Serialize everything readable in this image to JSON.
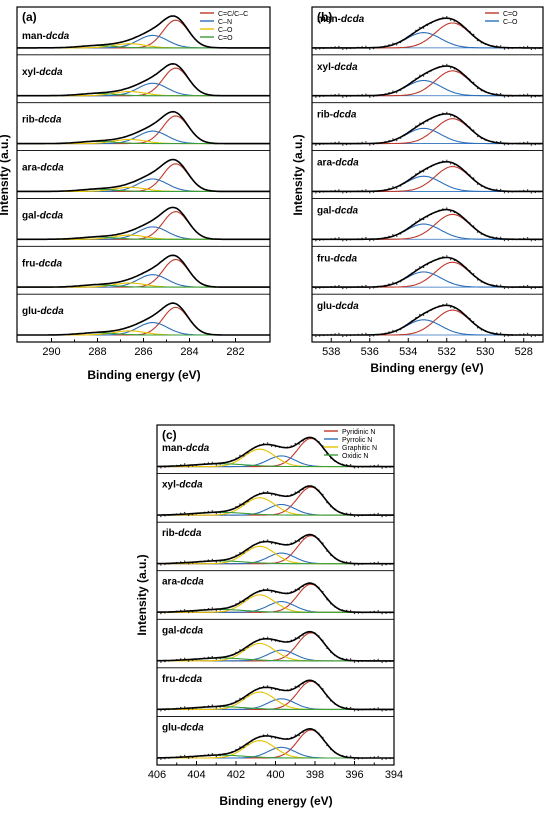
{
  "figure": {
    "y_axis_title": "Intensity (a.u.)",
    "x_axis_title": "Binding energy (eV)"
  },
  "chart_data": [
    {
      "panel": "(a)",
      "type": "line",
      "xlabel": "Binding energy (eV)",
      "ylabel": "Intensity (a.u.)",
      "xlim": [
        291.5,
        280.5
      ],
      "x_reversed": true,
      "xticks": [
        290,
        288,
        286,
        284,
        282
      ],
      "samples": [
        "man-dcda",
        "xyl-dcda",
        "rib-dcda",
        "ara-dcda",
        "gal-dcda",
        "fru-dcda",
        "glu-dcda"
      ],
      "components": [
        {
          "name": "C=C/C–C",
          "color": "#c0392b",
          "center": 284.6,
          "fwhm": 1.3,
          "amp": 1.0
        },
        {
          "name": "C–N",
          "color": "#2c6fbb",
          "center": 285.6,
          "fwhm": 1.5,
          "amp": 0.45
        },
        {
          "name": "C–O",
          "color": "#e8c200",
          "center": 286.6,
          "fwhm": 1.6,
          "amp": 0.15
        },
        {
          "name": "C=O",
          "color": "#3a9e3a",
          "center": 288.0,
          "fwhm": 1.8,
          "amp": 0.08
        }
      ],
      "envelope_color": "#000000",
      "data_points": false
    },
    {
      "panel": "(b)",
      "type": "line",
      "xlabel": "Binding energy (eV)",
      "ylabel": "Intensity (a.u.)",
      "xlim": [
        539,
        527
      ],
      "x_reversed": true,
      "xticks": [
        538,
        536,
        534,
        532,
        530,
        528
      ],
      "samples": [
        "man-dcda",
        "xyl-dcda",
        "rib-dcda",
        "ara-dcda",
        "gal-dcda",
        "fru-dcda",
        "glu-dcda"
      ],
      "components": [
        {
          "name": "C=O",
          "color": "#c0392b",
          "center": 531.7,
          "fwhm": 2.1,
          "amp": 0.9
        },
        {
          "name": "C–O",
          "color": "#2c6fbb",
          "center": 533.2,
          "fwhm": 2.1,
          "amp": 0.55
        }
      ],
      "envelope_color": "#000000",
      "data_points": true
    },
    {
      "panel": "(c)",
      "type": "line",
      "xlabel": "Binding energy (eV)",
      "ylabel": "Intensity (a.u.)",
      "xlim": [
        406,
        394
      ],
      "x_reversed": true,
      "xticks": [
        406,
        404,
        402,
        400,
        398,
        396,
        394
      ],
      "samples": [
        "man-dcda",
        "xyl-dcda",
        "rib-dcda",
        "ara-dcda",
        "gal-dcda",
        "fru-dcda",
        "glu-dcda"
      ],
      "components": [
        {
          "name": "Pyridinic N",
          "color": "#c0392b",
          "center": 398.2,
          "fwhm": 1.6,
          "amp": 1.0
        },
        {
          "name": "Pyrrolic N",
          "color": "#2c6fbb",
          "center": 399.7,
          "fwhm": 1.6,
          "amp": 0.38
        },
        {
          "name": "Graphitic N",
          "color": "#e8c200",
          "center": 400.8,
          "fwhm": 1.8,
          "amp": 0.62
        },
        {
          "name": "Oxidic N",
          "color": "#3a9e3a",
          "center": 402.8,
          "fwhm": 3.0,
          "amp": 0.1
        }
      ],
      "envelope_color": "#000000",
      "data_points": true
    }
  ]
}
